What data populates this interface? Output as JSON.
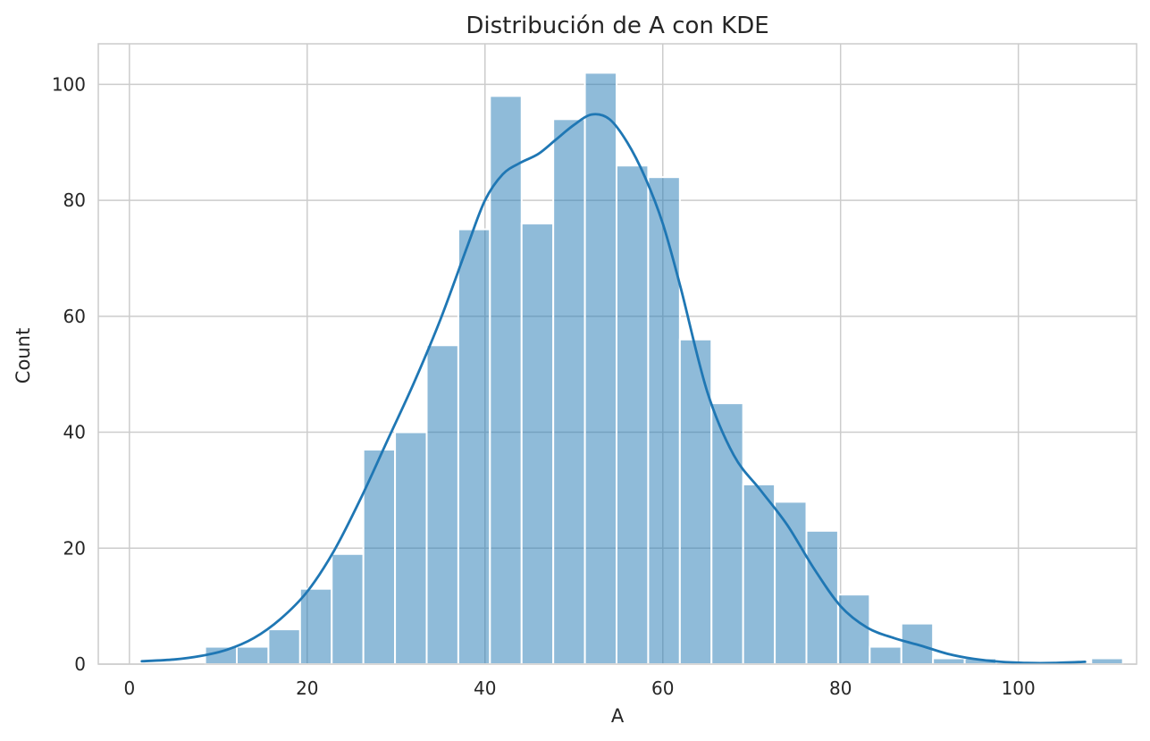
{
  "chart_data": {
    "type": "bar",
    "subtype": "histogram-with-kde",
    "title": "Distribución de A con KDE",
    "xlabel": "A",
    "ylabel": "Count",
    "xlim": [
      -3.5,
      113.3
    ],
    "ylim": [
      0,
      107
    ],
    "grid": true,
    "x_ticks": [
      0,
      20,
      40,
      60,
      80,
      100
    ],
    "y_ticks": [
      0,
      20,
      40,
      60,
      80,
      100
    ],
    "bin_start": 1.4,
    "bin_width": 3.56,
    "counts": [
      0,
      0,
      3,
      3,
      6,
      13,
      19,
      37,
      40,
      55,
      75,
      98,
      76,
      94,
      102,
      86,
      84,
      56,
      45,
      31,
      28,
      23,
      12,
      3,
      7,
      1,
      1,
      0,
      0,
      0,
      1
    ],
    "color": "#1f77b4",
    "kde": {
      "x": [
        1.4,
        5,
        8,
        11,
        14,
        17,
        20,
        23,
        26,
        29,
        32,
        35,
        38,
        40,
        42,
        44,
        46,
        48,
        50,
        52,
        54,
        56,
        58,
        60,
        62,
        65,
        68,
        71,
        74,
        77,
        80,
        83,
        86,
        89,
        92,
        95,
        98,
        101,
        104,
        107.5
      ],
      "y": [
        0.5,
        0.8,
        1.4,
        2.5,
        4.5,
        7.8,
        12.5,
        19.5,
        28.5,
        38.5,
        48.5,
        59.5,
        72,
        80,
        84.5,
        86.5,
        88,
        90.5,
        93,
        94.8,
        94,
        90,
        84,
        76,
        65,
        47,
        36,
        30,
        24,
        16.5,
        10,
        6.3,
        4.5,
        3.2,
        1.8,
        0.9,
        0.4,
        0.2,
        0.2,
        0.4
      ]
    }
  }
}
